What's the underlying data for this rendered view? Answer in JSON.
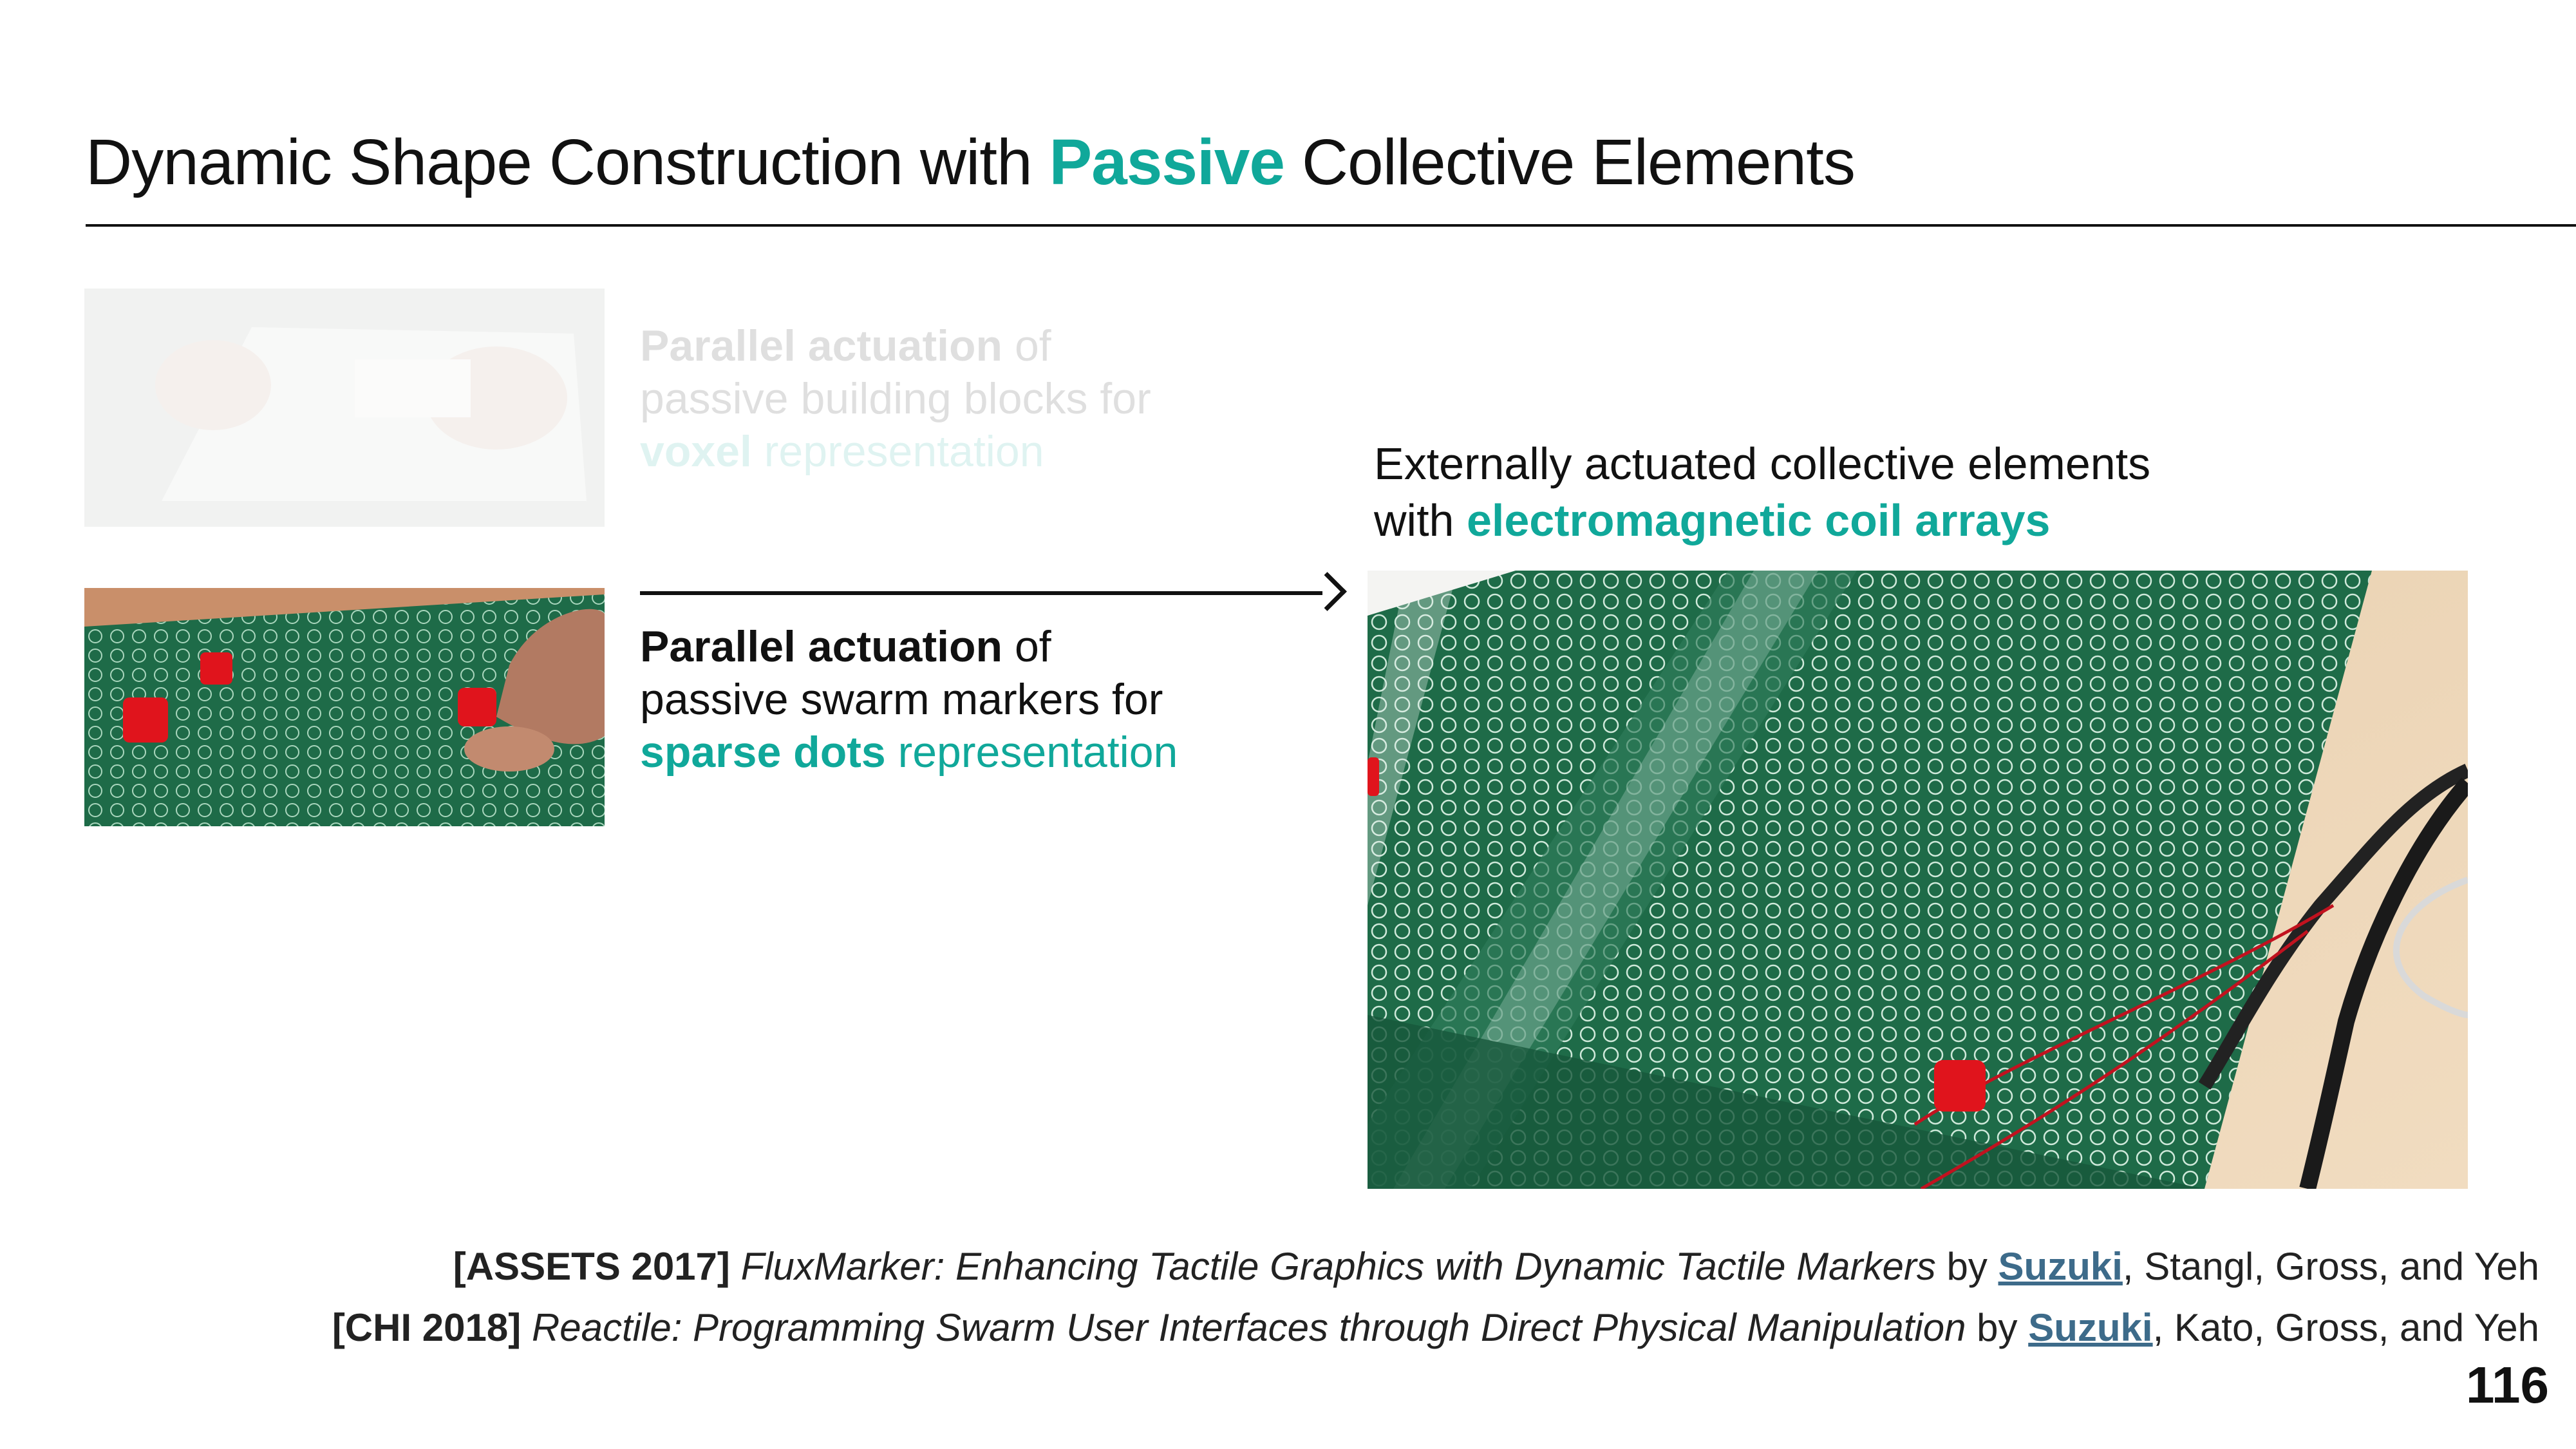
{
  "title": {
    "part1": "Dynamic Shape Construction with ",
    "highlight": "Passive",
    "part2": " Collective Elements"
  },
  "voxel_block": {
    "line1_bold": "Parallel actuation",
    "line1_rest": " of",
    "line2": "passive building blocks for",
    "line3_highlight": "voxel",
    "line3_rest": " representation"
  },
  "swarm_block": {
    "line1_bold": "Parallel actuation",
    "line1_rest": " of",
    "line2": "passive swarm markers for",
    "line3_highlight": "sparse dots",
    "line3_rest": " representation"
  },
  "external_block": {
    "line1": "Externally actuated collective elements",
    "line2_prefix": "with ",
    "line2_highlight": "electromagnetic coil arrays"
  },
  "references": [
    {
      "venue": "[ASSETS 2017]",
      "paper": "FluxMarker: Enhancing Tactile Graphics with Dynamic Tactile Markers",
      "by": " by ",
      "lead_author": "Suzuki",
      "others": ", Stangl, Gross, and Yeh"
    },
    {
      "venue": "[CHI 2018]",
      "paper": "Reactile: Programming Swarm User Interfaces through Direct Physical Manipulation",
      "by": " by ",
      "lead_author": "Suzuki",
      "others": ", Kato, Gross, and Yeh"
    }
  ],
  "page_number": "116",
  "colors": {
    "accent": "#10a89a",
    "link": "#3d6b8a",
    "board_green": "#1e6b48"
  },
  "images": {
    "voxel": "voxel-blocks-photo",
    "swarm": "swarm-markers-photo",
    "coil": "electromagnetic-coil-board-photo"
  }
}
